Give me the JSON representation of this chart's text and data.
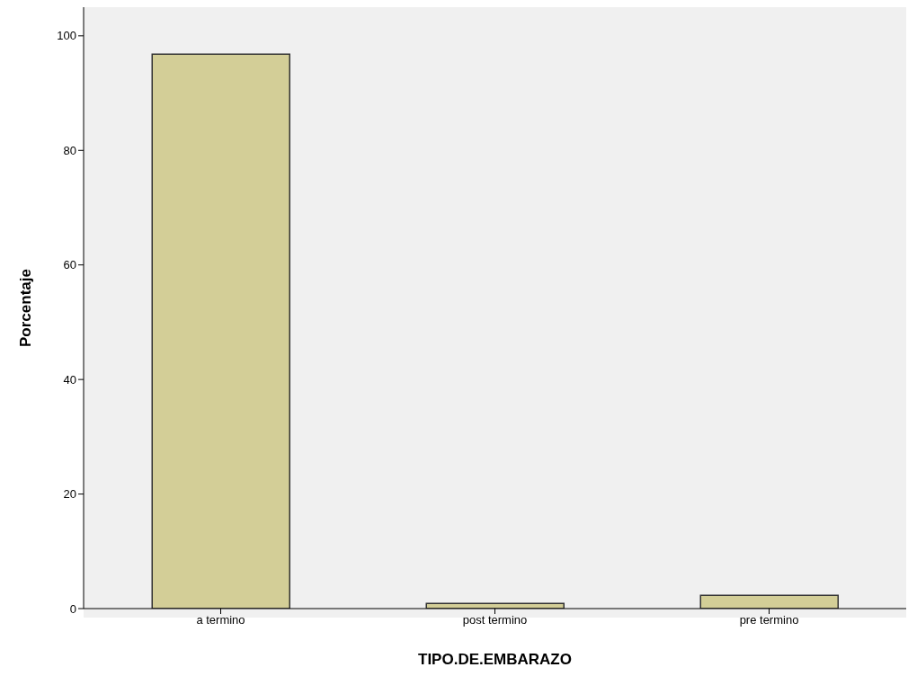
{
  "chart_data": {
    "type": "bar",
    "xlabel": "TIPO.DE.EMBARAZO",
    "ylabel": "Porcentaje",
    "categories": [
      "a termino",
      "post termino",
      "pre termino"
    ],
    "values": [
      96.8,
      0.9,
      2.3
    ],
    "color": "#d3ce97",
    "ylim": [
      0,
      105
    ],
    "yticks": [
      0,
      20,
      40,
      60,
      80,
      100
    ],
    "grid": false
  }
}
